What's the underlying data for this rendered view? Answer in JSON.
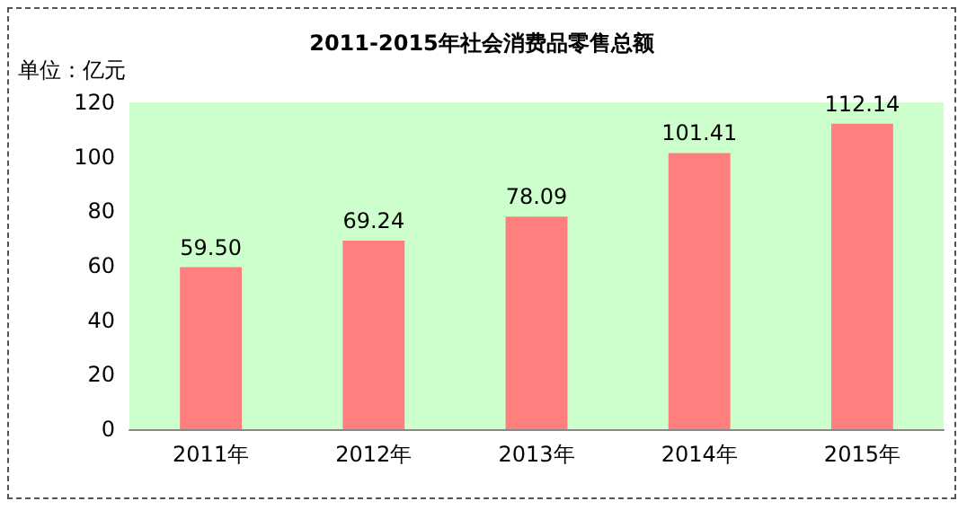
{
  "chart_data": {
    "type": "bar",
    "title": "2011-2015年社会消费品零售总额",
    "ylabel": "单位：亿元",
    "categories": [
      "2011年",
      "2012年",
      "2013年",
      "2014年",
      "2015年"
    ],
    "values": [
      59.5,
      69.24,
      78.09,
      101.41,
      112.14
    ],
    "value_labels": [
      "59.50",
      "69.24",
      "78.09",
      "101.41",
      "112.14"
    ],
    "color": "#ff7f7f",
    "ylim": [
      0,
      120
    ],
    "yticks": [
      0,
      20,
      40,
      60,
      80,
      100,
      120
    ],
    "grid": false
  }
}
